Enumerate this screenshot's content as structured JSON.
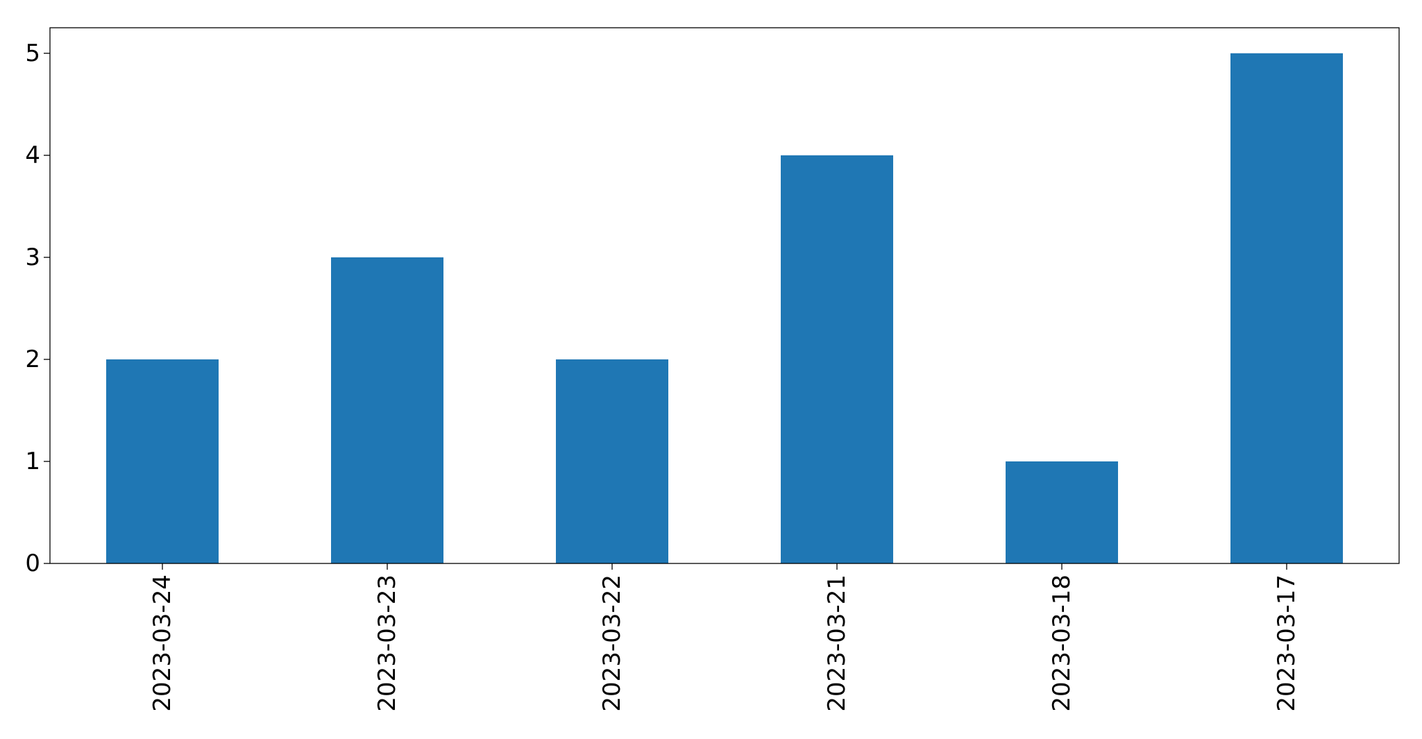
{
  "chart_data": {
    "type": "bar",
    "title": "",
    "xlabel": "",
    "ylabel": "",
    "categories": [
      "2023-03-24",
      "2023-03-23",
      "2023-03-22",
      "2023-03-21",
      "2023-03-18",
      "2023-03-17"
    ],
    "values": [
      2,
      3,
      2,
      4,
      1,
      5
    ],
    "ylim": [
      0,
      5.25
    ],
    "yticks": [
      0,
      1,
      2,
      3,
      4,
      5
    ],
    "bar_color": "#1f77b4",
    "grid": false,
    "legend": "none"
  }
}
